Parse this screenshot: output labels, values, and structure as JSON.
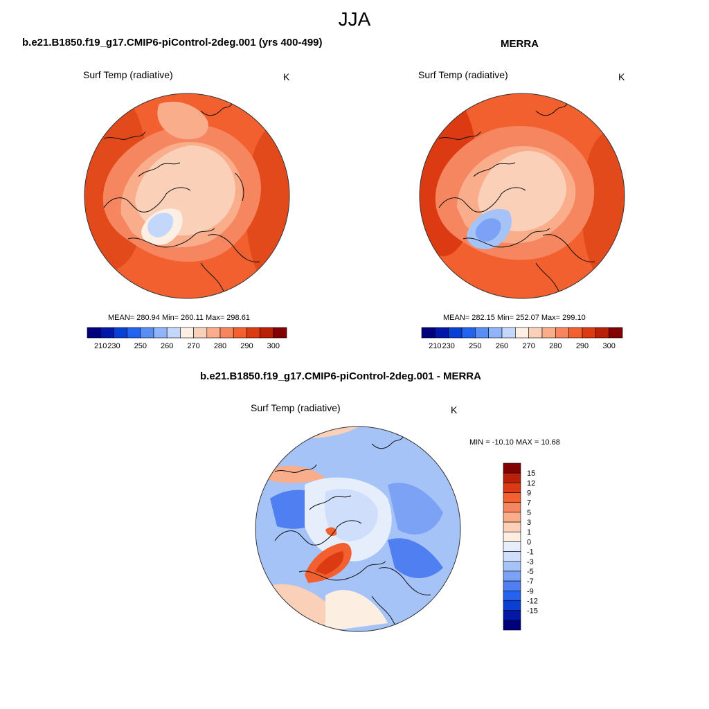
{
  "page": {
    "season": "JJA",
    "units": "K",
    "variable": "Surf Temp (radiative)"
  },
  "colors": {
    "abs_scale": [
      "#00007a",
      "#0018a8",
      "#0a3fd6",
      "#2563ef",
      "#5b8ef2",
      "#8fb4f7",
      "#c3d7fb",
      "#fdefe4",
      "#fbd0b8",
      "#f9ad8a",
      "#f68660",
      "#f2602f",
      "#dc3a12",
      "#b8200a",
      "#820000"
    ],
    "diff_scale": [
      "#00007a",
      "#0018a8",
      "#0a3fd6",
      "#2563ef",
      "#4f7ff0",
      "#7ba2f4",
      "#a6c3f8",
      "#cfdffb",
      "#e6eefc",
      "#fdeee2",
      "#fbd0b8",
      "#f9ad8a",
      "#f68660",
      "#f2602f",
      "#dc3a12",
      "#b8200a",
      "#820000"
    ],
    "land_line": "#111111"
  },
  "chart_data": [
    {
      "type": "heatmap",
      "projection": "north-polar-stereographic",
      "title": "b.e21.B1850.f19_g17.CMIP6-piControl-2deg.001 (yrs 400-499)",
      "subtitle": "Surf Temp (radiative)",
      "units": "K",
      "stats": {
        "mean": 280.94,
        "min": 260.11,
        "max": 298.61
      },
      "stats_text": "MEAN= 280.94  Min= 260.11  Max= 298.61",
      "colorbar": {
        "levels": [
          210,
          220,
          230,
          240,
          250,
          255,
          260,
          265,
          270,
          275,
          280,
          285,
          290,
          295,
          300
        ],
        "tick_labels": [
          "210",
          "230",
          "250",
          "260",
          "270",
          "280",
          "290",
          "300"
        ]
      }
    },
    {
      "type": "heatmap",
      "projection": "north-polar-stereographic",
      "title": "MERRA",
      "subtitle": "Surf Temp (radiative)",
      "units": "K",
      "stats": {
        "mean": 282.15,
        "min": 252.07,
        "max": 299.1
      },
      "stats_text": "MEAN= 282.15  Min= 252.07  Max= 299.10",
      "colorbar": {
        "levels": [
          210,
          220,
          230,
          240,
          250,
          255,
          260,
          265,
          270,
          275,
          280,
          285,
          290,
          295,
          300
        ],
        "tick_labels": [
          "210",
          "230",
          "250",
          "260",
          "270",
          "280",
          "290",
          "300"
        ]
      }
    },
    {
      "type": "heatmap",
      "projection": "north-polar-stereographic",
      "title": "b.e21.B1850.f19_g17.CMIP6-piControl-2deg.001 - MERRA",
      "subtitle": "Surf Temp (radiative)",
      "units": "K",
      "stats": {
        "min": -10.1,
        "max": 10.68
      },
      "stats_text": "MIN = -10.10 MAX =  10.68",
      "colorbar": {
        "tick_labels": [
          "15",
          "12",
          "9",
          "7",
          "5",
          "3",
          "1",
          "0",
          "-1",
          "-3",
          "-5",
          "-7",
          "-9",
          "-12",
          "-15"
        ]
      }
    }
  ]
}
